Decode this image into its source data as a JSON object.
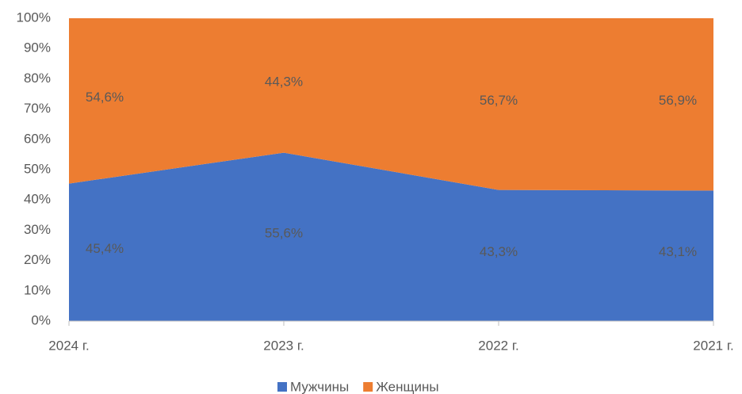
{
  "chart_data": {
    "type": "area",
    "stacked": true,
    "categories": [
      "2024 г.",
      "2023 г.",
      "2022 г.",
      "2021 г."
    ],
    "series": [
      {
        "name": "Мужчины",
        "color": "#4472c4",
        "values": [
          45.4,
          55.6,
          43.3,
          43.1
        ],
        "value_labels": [
          "45,4%",
          "55,6%",
          "43,3%",
          "43,1%"
        ]
      },
      {
        "name": "Женщины",
        "color": "#ed7d31",
        "values": [
          54.6,
          44.3,
          56.7,
          56.9
        ],
        "value_labels": [
          "54,6%",
          "44,3%",
          "56,7%",
          "56,9%"
        ]
      }
    ],
    "ylim": [
      0,
      100
    ],
    "yticks": [
      {
        "value": 0,
        "label": "0%"
      },
      {
        "value": 10,
        "label": "10%"
      },
      {
        "value": 20,
        "label": "20%"
      },
      {
        "value": 30,
        "label": "30%"
      },
      {
        "value": 40,
        "label": "40%"
      },
      {
        "value": 50,
        "label": "50%"
      },
      {
        "value": 60,
        "label": "60%"
      },
      {
        "value": 70,
        "label": "70%"
      },
      {
        "value": 80,
        "label": "80%"
      },
      {
        "value": 90,
        "label": "90%"
      },
      {
        "value": 100,
        "label": "100%"
      }
    ],
    "grid": false,
    "legend": "bottom"
  }
}
